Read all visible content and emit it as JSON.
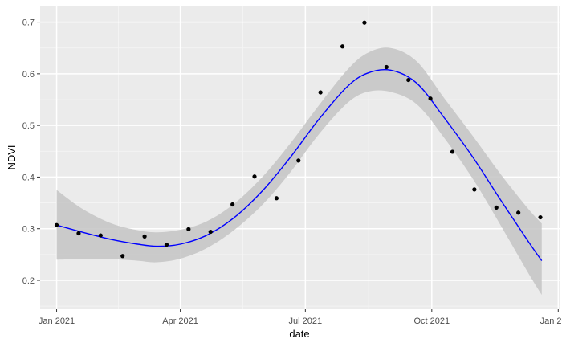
{
  "chart_data": {
    "type": "scatter",
    "title": "",
    "xlabel": "date",
    "ylabel": "NDVI",
    "x_axis": {
      "scale": "date",
      "range": [
        "2020-12-20",
        "2022-01-02"
      ],
      "ticks": [
        {
          "date": "2021-01-01",
          "label": "Jan 2021"
        },
        {
          "date": "2021-04-01",
          "label": "Apr 2021"
        },
        {
          "date": "2021-07-01",
          "label": "Jul 2021"
        },
        {
          "date": "2021-10-01",
          "label": "Oct 2021"
        },
        {
          "date": "2022-01-01",
          "label": "Jan 2022"
        }
      ]
    },
    "y_axis": {
      "range": [
        0.144,
        0.732
      ],
      "ticks": [
        0.2,
        0.3,
        0.4,
        0.5,
        0.6,
        0.7
      ],
      "tick_labels": [
        "0.2",
        "0.3",
        "0.4",
        "0.5",
        "0.6",
        "0.7"
      ]
    },
    "grid": true,
    "colors": {
      "panel_bg": "#ebebeb",
      "grid_major": "#ffffff",
      "grid_minor": "#f5f5f5",
      "points": "#000000",
      "smooth_line": "#0000ff",
      "ribbon": "#c4c4c4"
    },
    "series": [
      {
        "type": "scatter",
        "points": [
          {
            "x": "2021-01-01",
            "y": 0.307
          },
          {
            "x": "2021-01-17",
            "y": 0.291
          },
          {
            "x": "2021-02-02",
            "y": 0.287
          },
          {
            "x": "2021-02-18",
            "y": 0.247
          },
          {
            "x": "2021-03-06",
            "y": 0.285
          },
          {
            "x": "2021-03-22",
            "y": 0.269
          },
          {
            "x": "2021-04-07",
            "y": 0.299
          },
          {
            "x": "2021-04-23",
            "y": 0.294
          },
          {
            "x": "2021-05-09",
            "y": 0.347
          },
          {
            "x": "2021-05-25",
            "y": 0.401
          },
          {
            "x": "2021-06-10",
            "y": 0.359
          },
          {
            "x": "2021-06-26",
            "y": 0.432
          },
          {
            "x": "2021-07-12",
            "y": 0.564
          },
          {
            "x": "2021-07-28",
            "y": 0.653
          },
          {
            "x": "2021-08-13",
            "y": 0.699
          },
          {
            "x": "2021-08-29",
            "y": 0.613
          },
          {
            "x": "2021-09-14",
            "y": 0.588
          },
          {
            "x": "2021-09-30",
            "y": 0.552
          },
          {
            "x": "2021-10-16",
            "y": 0.449
          },
          {
            "x": "2021-11-01",
            "y": 0.376
          },
          {
            "x": "2021-11-17",
            "y": 0.341
          },
          {
            "x": "2021-12-03",
            "y": 0.331
          },
          {
            "x": "2021-12-19",
            "y": 0.322
          }
        ]
      },
      {
        "type": "smooth",
        "points": [
          {
            "x": "2021-01-01",
            "y": 0.307,
            "lo": 0.24,
            "hi": 0.375
          },
          {
            "x": "2021-01-20",
            "y": 0.293,
            "lo": 0.241,
            "hi": 0.338
          },
          {
            "x": "2021-02-10",
            "y": 0.279,
            "lo": 0.241,
            "hi": 0.31
          },
          {
            "x": "2021-03-01",
            "y": 0.27,
            "lo": 0.238,
            "hi": 0.297
          },
          {
            "x": "2021-03-15",
            "y": 0.266,
            "lo": 0.235,
            "hi": 0.293
          },
          {
            "x": "2021-04-01",
            "y": 0.27,
            "lo": 0.242,
            "hi": 0.298
          },
          {
            "x": "2021-04-20",
            "y": 0.287,
            "lo": 0.262,
            "hi": 0.314
          },
          {
            "x": "2021-05-10",
            "y": 0.321,
            "lo": 0.297,
            "hi": 0.348
          },
          {
            "x": "2021-05-31",
            "y": 0.374,
            "lo": 0.347,
            "hi": 0.401
          },
          {
            "x": "2021-06-20",
            "y": 0.438,
            "lo": 0.409,
            "hi": 0.465
          },
          {
            "x": "2021-07-10",
            "y": 0.509,
            "lo": 0.48,
            "hi": 0.536
          },
          {
            "x": "2021-07-31",
            "y": 0.574,
            "lo": 0.542,
            "hi": 0.606
          },
          {
            "x": "2021-08-15",
            "y": 0.601,
            "lo": 0.565,
            "hi": 0.64
          },
          {
            "x": "2021-09-01",
            "y": 0.607,
            "lo": 0.565,
            "hi": 0.65
          },
          {
            "x": "2021-09-20",
            "y": 0.582,
            "lo": 0.541,
            "hi": 0.624
          },
          {
            "x": "2021-10-10",
            "y": 0.515,
            "lo": 0.476,
            "hi": 0.553
          },
          {
            "x": "2021-10-31",
            "y": 0.438,
            "lo": 0.396,
            "hi": 0.479
          },
          {
            "x": "2021-11-20",
            "y": 0.356,
            "lo": 0.307,
            "hi": 0.406
          },
          {
            "x": "2021-12-10",
            "y": 0.276,
            "lo": 0.215,
            "hi": 0.339
          },
          {
            "x": "2021-12-20",
            "y": 0.238,
            "lo": 0.172,
            "hi": 0.31
          }
        ]
      }
    ]
  }
}
